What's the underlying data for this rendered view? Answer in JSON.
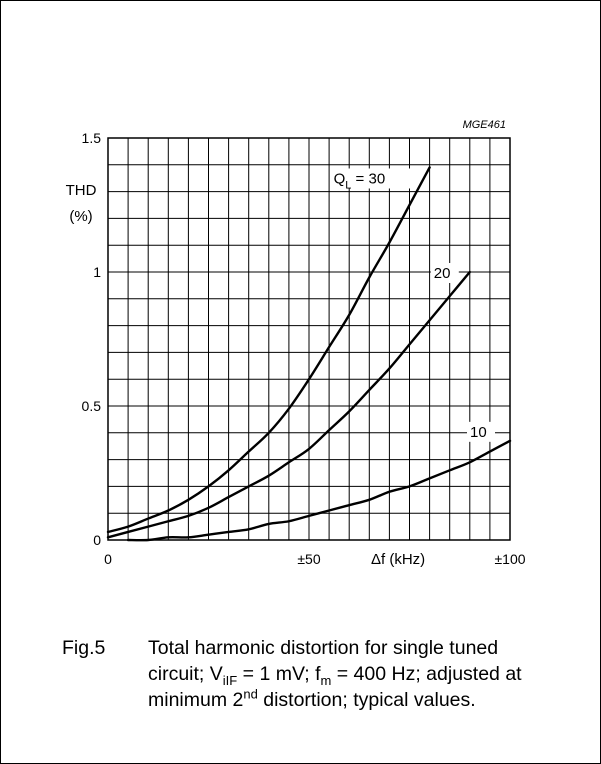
{
  "chart_data": {
    "type": "line",
    "code": "MGE461",
    "ylabel": "THD",
    "ylabel_unit": "(%)",
    "xlabel": "Δf (kHz)",
    "xlim": [
      0,
      100
    ],
    "ylim": [
      0,
      1.5
    ],
    "x_ticks": [
      {
        "value": 0,
        "label": "0"
      },
      {
        "value": 50,
        "label": "±50"
      },
      {
        "value": 100,
        "label": "±100"
      }
    ],
    "y_ticks": [
      {
        "value": 0,
        "label": "0"
      },
      {
        "value": 0.5,
        "label": "0.5"
      },
      {
        "value": 1,
        "label": "1"
      },
      {
        "value": 1.5,
        "label": "1.5"
      }
    ],
    "grid": {
      "x_step": 5,
      "y_step": 0.1
    },
    "series": [
      {
        "name": "QL = 30",
        "label_main": "Q",
        "label_sub": "L",
        "label_rest": " = 30",
        "x": [
          0,
          5,
          10,
          15,
          20,
          25,
          30,
          35,
          40,
          45,
          50,
          55,
          60,
          65,
          70,
          75,
          80
        ],
        "y": [
          0.03,
          0.05,
          0.08,
          0.11,
          0.15,
          0.2,
          0.26,
          0.33,
          0.4,
          0.49,
          0.6,
          0.72,
          0.84,
          0.98,
          1.11,
          1.25,
          1.39
        ]
      },
      {
        "name": "20",
        "label_main": "20",
        "label_sub": "",
        "label_rest": "",
        "x": [
          0,
          5,
          10,
          15,
          20,
          25,
          30,
          35,
          40,
          45,
          50,
          55,
          60,
          65,
          70,
          75,
          80,
          85,
          90
        ],
        "y": [
          0.01,
          0.03,
          0.05,
          0.07,
          0.09,
          0.12,
          0.16,
          0.2,
          0.24,
          0.29,
          0.34,
          0.41,
          0.48,
          0.56,
          0.64,
          0.73,
          0.82,
          0.91,
          1.0
        ]
      },
      {
        "name": "10",
        "label_main": "10",
        "label_sub": "",
        "label_rest": "",
        "x": [
          5,
          10,
          15,
          20,
          25,
          30,
          35,
          40,
          45,
          50,
          55,
          60,
          65,
          70,
          75,
          80,
          85,
          90,
          95,
          100
        ],
        "y": [
          0.0,
          0.0,
          0.01,
          0.01,
          0.02,
          0.03,
          0.04,
          0.06,
          0.07,
          0.09,
          0.11,
          0.13,
          0.15,
          0.18,
          0.2,
          0.23,
          0.26,
          0.29,
          0.33,
          0.37
        ]
      }
    ]
  },
  "caption": {
    "fig": "Fig.5",
    "line1": "Total harmonic distortion for single tuned",
    "line2_a": "circuit; V",
    "line2_sub1": "iIF",
    "line2_b": " = 1 mV; f",
    "line2_sub2": "m",
    "line2_c": " = 400 Hz; adjusted at",
    "line3_a": "minimum 2",
    "line3_sup": "nd",
    "line3_b": " distortion; typical values."
  }
}
